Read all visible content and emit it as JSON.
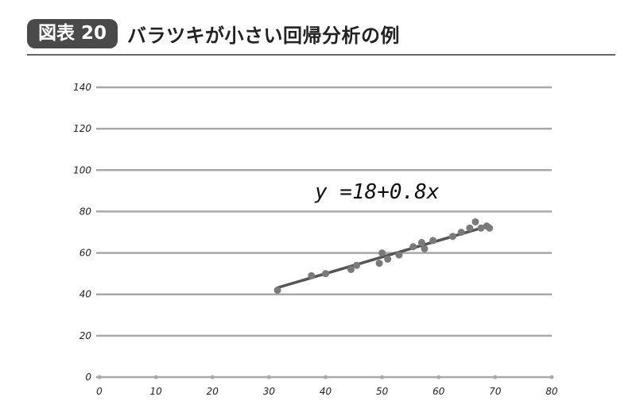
{
  "header": {
    "badge": "図表 20",
    "title": "バラツキが小さい回帰分析の例"
  },
  "chart_data": {
    "type": "scatter",
    "title": "バラツキが小さい回帰分析の例",
    "xlabel": "",
    "ylabel": "",
    "xlim": [
      0,
      80
    ],
    "ylim": [
      0,
      140
    ],
    "x_ticks": [
      "0",
      "10",
      "20",
      "30",
      "40",
      "50",
      "60",
      "70",
      "80"
    ],
    "y_ticks": [
      "0",
      "20",
      "40",
      "60",
      "80",
      "100",
      "120",
      "140"
    ],
    "grid": true,
    "points": [
      {
        "x": 31.5,
        "y": 42
      },
      {
        "x": 37.5,
        "y": 49
      },
      {
        "x": 40,
        "y": 50
      },
      {
        "x": 44.5,
        "y": 52
      },
      {
        "x": 45.5,
        "y": 54
      },
      {
        "x": 49.5,
        "y": 55
      },
      {
        "x": 50,
        "y": 60
      },
      {
        "x": 51,
        "y": 57
      },
      {
        "x": 53,
        "y": 59
      },
      {
        "x": 55.5,
        "y": 63
      },
      {
        "x": 57,
        "y": 65
      },
      {
        "x": 57.5,
        "y": 62
      },
      {
        "x": 59,
        "y": 66
      },
      {
        "x": 62.5,
        "y": 68
      },
      {
        "x": 64,
        "y": 70
      },
      {
        "x": 65.5,
        "y": 72
      },
      {
        "x": 66.5,
        "y": 75
      },
      {
        "x": 67.5,
        "y": 72
      },
      {
        "x": 68.5,
        "y": 73
      },
      {
        "x": 69,
        "y": 72
      }
    ],
    "regression": {
      "equation": "y =18+0.8x",
      "intercept": 18,
      "slope": 0.8,
      "x_range": [
        31.5,
        69
      ]
    },
    "colors": {
      "grid": "#a8a8a8",
      "points": "#7a7a7a",
      "line": "#555555"
    }
  }
}
